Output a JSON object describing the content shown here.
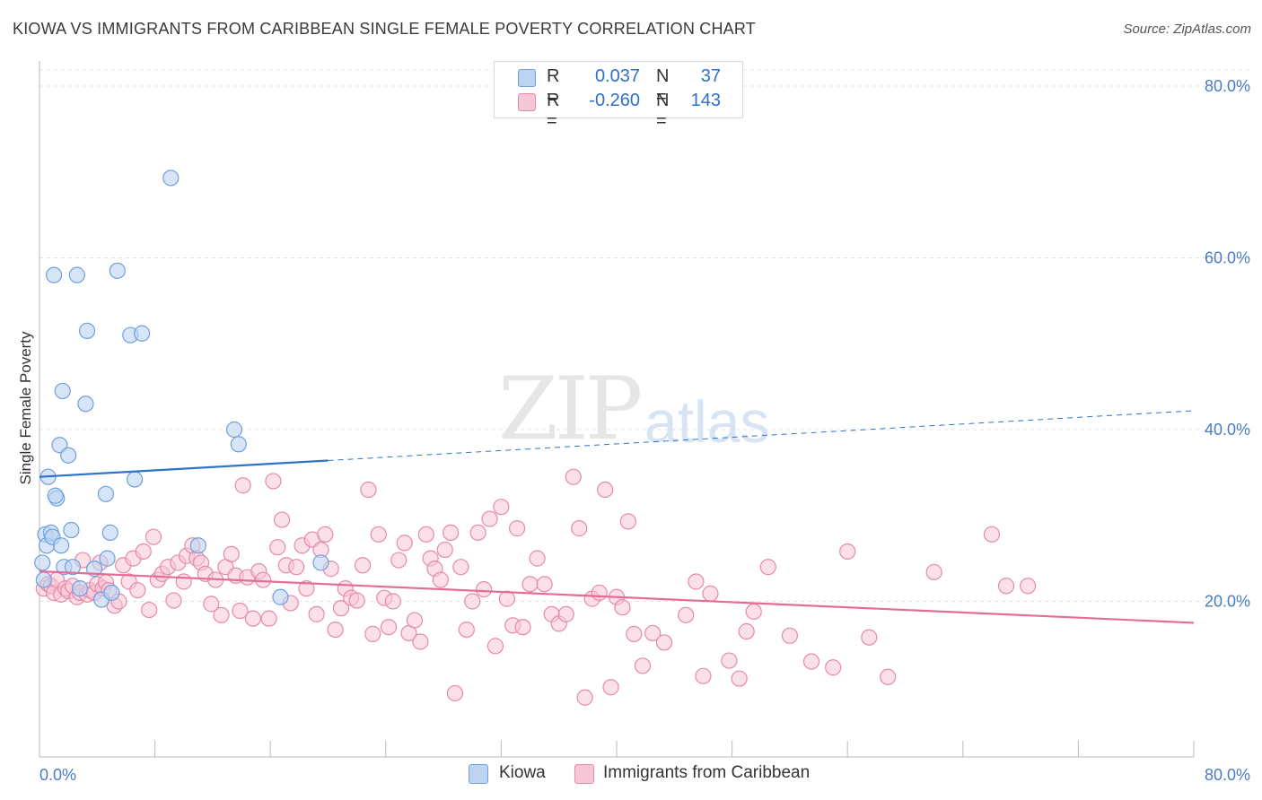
{
  "title": "KIOWA VS IMMIGRANTS FROM CARIBBEAN SINGLE FEMALE POVERTY CORRELATION CHART",
  "source": "Source: ZipAtlas.com",
  "watermark_zip": "ZIP",
  "watermark_atlas": "atlas",
  "colors": {
    "kiowa": "#6fa0dc",
    "kiowa_fill": "#bcd4f2",
    "kiowa_line": "#2f74c9",
    "carib": "#e58aab",
    "carib_fill": "#f7c6d6",
    "carib_line": "#e46d98",
    "axis_text": "#4a7cc4",
    "grid": "#e3e3e3"
  },
  "legend": {
    "rows": [
      {
        "r_label": "R =",
        "r_value": "0.037",
        "n_label": "N =",
        "n_value": "37"
      },
      {
        "r_label": "R =",
        "r_value": "-0.260",
        "n_label": "N =",
        "n_value": "143"
      }
    ]
  },
  "bottom_legend": {
    "kiowa": "Kiowa",
    "carib": "Immigrants from Caribbean"
  },
  "chart_data": {
    "type": "scatter",
    "title": "KIOWA VS IMMIGRANTS FROM CARIBBEAN SINGLE FEMALE POVERTY CORRELATION CHART",
    "xlabel": "",
    "ylabel": "Single Female Poverty",
    "xlim": [
      0,
      80
    ],
    "ylim": [
      0,
      80
    ],
    "x_tick_labels": [
      "0.0%",
      "80.0%"
    ],
    "y_tick_labels": [
      "20.0%",
      "40.0%",
      "60.0%",
      "80.0%"
    ],
    "y_ticks": [
      20,
      40,
      60,
      80
    ],
    "grid": true,
    "legend_position": "top-center",
    "series": [
      {
        "name": "Kiowa",
        "r": 0.037,
        "n": 37,
        "trend": {
          "x": [
            0,
            20.0
          ],
          "y": [
            34.5,
            36.4
          ],
          "dashed_to": [
            80,
            42.2
          ]
        },
        "points": [
          [
            0.2,
            24.5
          ],
          [
            0.4,
            27.8
          ],
          [
            0.5,
            26.5
          ],
          [
            0.6,
            34.5
          ],
          [
            0.8,
            28.0
          ],
          [
            0.9,
            27.5
          ],
          [
            1.0,
            58.0
          ],
          [
            1.2,
            32.0
          ],
          [
            1.4,
            38.2
          ],
          [
            1.5,
            26.5
          ],
          [
            1.6,
            44.5
          ],
          [
            1.7,
            24.0
          ],
          [
            2.0,
            37.0
          ],
          [
            2.2,
            28.3
          ],
          [
            2.3,
            24.0
          ],
          [
            2.6,
            58.0
          ],
          [
            2.8,
            21.5
          ],
          [
            3.2,
            43.0
          ],
          [
            3.3,
            51.5
          ],
          [
            3.8,
            23.8
          ],
          [
            4.3,
            20.2
          ],
          [
            4.6,
            32.5
          ],
          [
            4.7,
            25.0
          ],
          [
            4.9,
            28.0
          ],
          [
            5.4,
            58.5
          ],
          [
            6.3,
            51.0
          ],
          [
            6.6,
            34.2
          ],
          [
            7.1,
            51.2
          ],
          [
            9.1,
            69.3
          ],
          [
            11.0,
            26.5
          ],
          [
            13.5,
            40.0
          ],
          [
            13.8,
            38.3
          ],
          [
            16.7,
            20.5
          ],
          [
            19.5,
            24.5
          ],
          [
            0.3,
            22.5
          ],
          [
            1.1,
            32.3
          ],
          [
            5.0,
            21.0
          ]
        ]
      },
      {
        "name": "Immigrants from Caribbean",
        "r": -0.26,
        "n": 143,
        "trend": {
          "x": [
            0,
            80
          ],
          "y": [
            23.5,
            17.5
          ]
        },
        "points": [
          [
            0.3,
            21.5
          ],
          [
            0.6,
            22.0
          ],
          [
            0.8,
            21.8
          ],
          [
            1.0,
            21.0
          ],
          [
            1.2,
            22.5
          ],
          [
            1.5,
            20.8
          ],
          [
            1.8,
            21.5
          ],
          [
            2.0,
            21.2
          ],
          [
            2.3,
            21.8
          ],
          [
            2.6,
            20.5
          ],
          [
            2.8,
            21.0
          ],
          [
            3.0,
            24.8
          ],
          [
            3.3,
            20.8
          ],
          [
            3.5,
            21.3
          ],
          [
            3.8,
            21.0
          ],
          [
            4.0,
            22.0
          ],
          [
            4.2,
            24.5
          ],
          [
            4.4,
            21.5
          ],
          [
            4.6,
            22.2
          ],
          [
            4.8,
            21.3
          ],
          [
            5.2,
            19.5
          ],
          [
            5.5,
            20.0
          ],
          [
            5.8,
            24.2
          ],
          [
            6.2,
            22.3
          ],
          [
            6.5,
            25.0
          ],
          [
            6.8,
            21.3
          ],
          [
            7.2,
            25.8
          ],
          [
            7.6,
            19.0
          ],
          [
            7.9,
            27.5
          ],
          [
            8.2,
            22.5
          ],
          [
            8.5,
            23.2
          ],
          [
            8.9,
            24.0
          ],
          [
            9.3,
            20.1
          ],
          [
            9.6,
            24.5
          ],
          [
            10.0,
            22.3
          ],
          [
            10.2,
            25.3
          ],
          [
            10.6,
            26.5
          ],
          [
            10.9,
            25.0
          ],
          [
            11.2,
            24.5
          ],
          [
            11.5,
            23.2
          ],
          [
            11.9,
            19.7
          ],
          [
            12.2,
            22.5
          ],
          [
            12.6,
            18.4
          ],
          [
            12.9,
            24.0
          ],
          [
            13.3,
            25.5
          ],
          [
            13.6,
            23.0
          ],
          [
            13.9,
            18.9
          ],
          [
            14.1,
            33.5
          ],
          [
            14.4,
            22.8
          ],
          [
            14.8,
            18.0
          ],
          [
            15.2,
            23.5
          ],
          [
            15.5,
            22.5
          ],
          [
            15.9,
            18.0
          ],
          [
            16.2,
            34.0
          ],
          [
            16.5,
            26.3
          ],
          [
            16.8,
            29.5
          ],
          [
            17.1,
            24.2
          ],
          [
            17.4,
            19.8
          ],
          [
            17.8,
            24.0
          ],
          [
            18.2,
            26.5
          ],
          [
            18.5,
            21.5
          ],
          [
            18.9,
            27.2
          ],
          [
            19.2,
            18.5
          ],
          [
            19.5,
            26.0
          ],
          [
            19.8,
            27.8
          ],
          [
            20.2,
            23.8
          ],
          [
            20.5,
            16.7
          ],
          [
            20.9,
            19.2
          ],
          [
            21.2,
            21.5
          ],
          [
            21.6,
            20.4
          ],
          [
            22.0,
            20.1
          ],
          [
            22.4,
            24.2
          ],
          [
            22.8,
            33.0
          ],
          [
            23.1,
            16.2
          ],
          [
            23.5,
            27.8
          ],
          [
            23.9,
            20.4
          ],
          [
            24.2,
            17.0
          ],
          [
            24.5,
            20.0
          ],
          [
            24.9,
            24.8
          ],
          [
            25.3,
            26.8
          ],
          [
            25.6,
            16.3
          ],
          [
            26.0,
            17.8
          ],
          [
            26.4,
            15.3
          ],
          [
            26.8,
            27.8
          ],
          [
            27.1,
            25.0
          ],
          [
            27.4,
            23.8
          ],
          [
            27.8,
            22.5
          ],
          [
            28.1,
            26.0
          ],
          [
            28.5,
            28.0
          ],
          [
            28.8,
            9.3
          ],
          [
            29.2,
            24.0
          ],
          [
            29.6,
            16.7
          ],
          [
            30.0,
            20.0
          ],
          [
            30.4,
            28.0
          ],
          [
            30.8,
            21.4
          ],
          [
            31.2,
            29.6
          ],
          [
            31.6,
            14.8
          ],
          [
            32.0,
            31.0
          ],
          [
            32.4,
            20.3
          ],
          [
            32.8,
            17.2
          ],
          [
            33.1,
            28.5
          ],
          [
            33.5,
            17.0
          ],
          [
            34.0,
            22.0
          ],
          [
            34.5,
            25.0
          ],
          [
            35.0,
            22.0
          ],
          [
            35.5,
            18.5
          ],
          [
            36.0,
            17.4
          ],
          [
            36.5,
            18.5
          ],
          [
            37.0,
            34.5
          ],
          [
            37.4,
            28.5
          ],
          [
            37.8,
            8.8
          ],
          [
            38.3,
            20.3
          ],
          [
            38.8,
            21.0
          ],
          [
            39.2,
            33.0
          ],
          [
            39.6,
            10.0
          ],
          [
            40.0,
            20.5
          ],
          [
            40.4,
            19.3
          ],
          [
            40.8,
            29.3
          ],
          [
            41.2,
            16.2
          ],
          [
            41.8,
            12.5
          ],
          [
            42.5,
            16.3
          ],
          [
            43.3,
            15.2
          ],
          [
            44.8,
            18.4
          ],
          [
            45.5,
            22.3
          ],
          [
            46.0,
            11.3
          ],
          [
            46.5,
            20.9
          ],
          [
            47.8,
            13.1
          ],
          [
            48.5,
            11.0
          ],
          [
            49.0,
            16.5
          ],
          [
            49.5,
            18.8
          ],
          [
            50.5,
            24.0
          ],
          [
            52.0,
            16.0
          ],
          [
            53.5,
            13.0
          ],
          [
            55.0,
            12.3
          ],
          [
            56.0,
            25.8
          ],
          [
            57.5,
            15.8
          ],
          [
            58.8,
            11.2
          ],
          [
            62.0,
            23.4
          ],
          [
            66.0,
            27.8
          ],
          [
            67.0,
            21.8
          ],
          [
            68.5,
            21.8
          ]
        ]
      }
    ]
  }
}
